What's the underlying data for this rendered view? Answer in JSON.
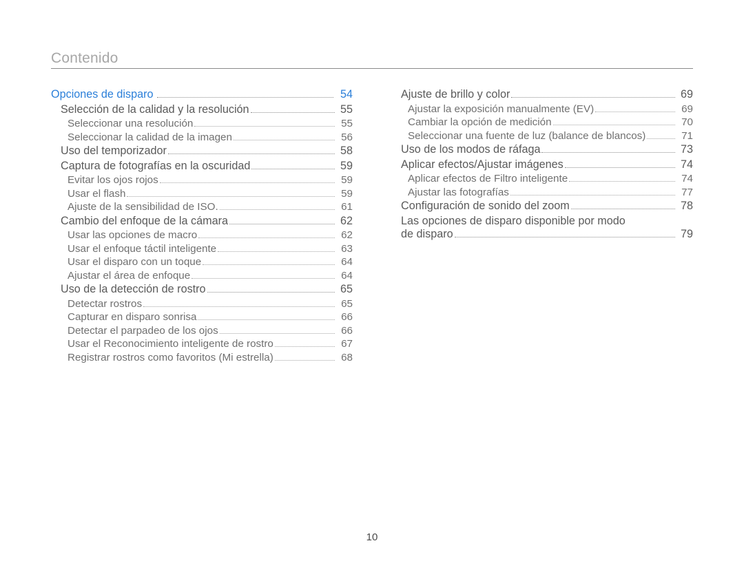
{
  "header": "Contenido",
  "pageNumber": "10",
  "colors": {
    "headerText": "#a7a7a7",
    "rule": "#8a8a8a",
    "sectionLink": "#2b7fd9",
    "text": "#5a5a5a",
    "subText": "#707070",
    "leader": "#8c8c8c",
    "background": "#ffffff"
  },
  "leftColumn": [
    {
      "level": "sec",
      "label": "Opciones de disparo",
      "page": "54"
    },
    {
      "level": "h",
      "label": "Selección de la calidad y la resolución",
      "page": "55"
    },
    {
      "level": "s",
      "label": "Seleccionar una resolución",
      "page": "55"
    },
    {
      "level": "s",
      "label": "Seleccionar la calidad de la imagen",
      "page": "56"
    },
    {
      "level": "h",
      "label": "Uso del temporizador",
      "page": "58"
    },
    {
      "level": "h",
      "label": "Captura de fotografías en la oscuridad",
      "page": "59"
    },
    {
      "level": "s",
      "label": "Evitar los ojos rojos",
      "page": "59"
    },
    {
      "level": "s",
      "label": "Usar el flash",
      "page": "59"
    },
    {
      "level": "s",
      "label": "Ajuste de la sensibilidad de ISO.",
      "page": "61"
    },
    {
      "level": "h",
      "label": "Cambio del enfoque de la cámara",
      "page": "62"
    },
    {
      "level": "s",
      "label": "Usar las opciones de macro",
      "page": "62"
    },
    {
      "level": "s",
      "label": "Usar el enfoque táctil inteligente",
      "page": "63"
    },
    {
      "level": "s",
      "label": "Usar el disparo con un toque",
      "page": "64"
    },
    {
      "level": "s",
      "label": "Ajustar el área de enfoque",
      "page": "64"
    },
    {
      "level": "h",
      "label": "Uso de la detección de rostro",
      "page": "65"
    },
    {
      "level": "s",
      "label": "Detectar rostros",
      "page": "65"
    },
    {
      "level": "s",
      "label": "Capturar en disparo sonrisa",
      "page": "66"
    },
    {
      "level": "s",
      "label": "Detectar el parpadeo de los ojos",
      "page": "66"
    },
    {
      "level": "s",
      "label": "Usar el Reconocimiento inteligente de rostro",
      "page": "67"
    },
    {
      "level": "s",
      "label": "Registrar rostros como favoritos (Mi estrella)",
      "page": "68"
    }
  ],
  "rightColumn": [
    {
      "level": "h",
      "label": "Ajuste de brillo y color",
      "page": "69"
    },
    {
      "level": "s",
      "label": "Ajustar la exposición manualmente (EV)",
      "page": "69"
    },
    {
      "level": "s",
      "label": "Cambiar la opción de medición",
      "page": "70"
    },
    {
      "level": "s",
      "label": "Seleccionar una fuente de luz (balance de blancos)",
      "page": "71"
    },
    {
      "level": "h",
      "label": "Uso de los modos de ráfaga",
      "page": "73"
    },
    {
      "level": "h",
      "label": "Aplicar efectos/Ajustar imágenes",
      "page": "74"
    },
    {
      "level": "s",
      "label": "Aplicar efectos de Filtro inteligente",
      "page": "74"
    },
    {
      "level": "s",
      "label": "Ajustar las fotografías",
      "page": "77"
    },
    {
      "level": "h",
      "label": "Configuración de sonido del zoom",
      "page": "78"
    },
    {
      "level": "h",
      "label": "Las opciones de disparo disponible por modo de disparo",
      "page": "79",
      "wrap": true
    }
  ]
}
